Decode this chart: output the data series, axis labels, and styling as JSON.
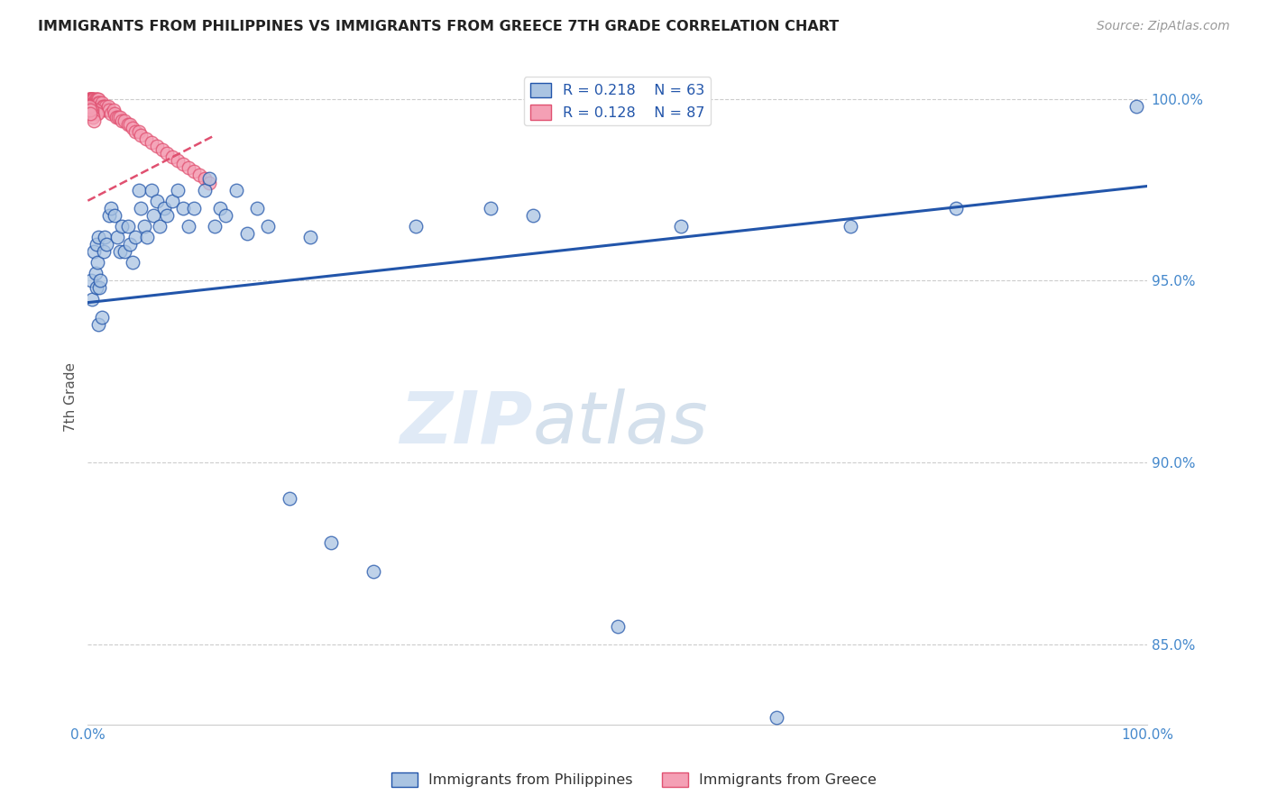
{
  "title": "IMMIGRANTS FROM PHILIPPINES VS IMMIGRANTS FROM GREECE 7TH GRADE CORRELATION CHART",
  "source": "Source: ZipAtlas.com",
  "ylabel": "7th Grade",
  "xlim": [
    0,
    1
  ],
  "ylim": [
    0.828,
    1.008
  ],
  "y_ticks": [
    0.85,
    0.9,
    0.95,
    1.0
  ],
  "y_tick_labels": [
    "85.0%",
    "90.0%",
    "95.0%",
    "100.0%"
  ],
  "x_ticks": [
    0.0,
    0.2,
    0.4,
    0.6,
    0.8,
    1.0
  ],
  "x_tick_labels": [
    "0.0%",
    "",
    "",
    "",
    "",
    "100.0%"
  ],
  "legend_r_blue": "R = 0.218",
  "legend_n_blue": "N = 63",
  "legend_r_pink": "R = 0.128",
  "legend_n_pink": "N = 87",
  "blue_color": "#aac4e2",
  "pink_color": "#f4a0b5",
  "trendline_blue_color": "#2255aa",
  "trendline_pink_color": "#e05070",
  "watermark_zip": "ZIP",
  "watermark_atlas": "atlas",
  "blue_trendline_x": [
    0.0,
    1.0
  ],
  "blue_trendline_y": [
    0.944,
    0.976
  ],
  "pink_trendline_x": [
    0.0,
    0.12
  ],
  "pink_trendline_y": [
    0.972,
    0.99
  ],
  "blue_points_x": [
    0.003,
    0.004,
    0.006,
    0.007,
    0.008,
    0.008,
    0.009,
    0.01,
    0.01,
    0.011,
    0.012,
    0.013,
    0.015,
    0.016,
    0.018,
    0.02,
    0.022,
    0.025,
    0.028,
    0.03,
    0.032,
    0.035,
    0.038,
    0.04,
    0.042,
    0.045,
    0.048,
    0.05,
    0.053,
    0.056,
    0.06,
    0.062,
    0.065,
    0.068,
    0.072,
    0.075,
    0.08,
    0.085,
    0.09,
    0.095,
    0.1,
    0.11,
    0.115,
    0.12,
    0.125,
    0.13,
    0.14,
    0.15,
    0.16,
    0.17,
    0.19,
    0.21,
    0.23,
    0.27,
    0.31,
    0.38,
    0.42,
    0.5,
    0.56,
    0.65,
    0.72,
    0.82,
    0.99
  ],
  "blue_points_y": [
    0.95,
    0.945,
    0.958,
    0.952,
    0.948,
    0.96,
    0.955,
    0.938,
    0.962,
    0.948,
    0.95,
    0.94,
    0.958,
    0.962,
    0.96,
    0.968,
    0.97,
    0.968,
    0.962,
    0.958,
    0.965,
    0.958,
    0.965,
    0.96,
    0.955,
    0.962,
    0.975,
    0.97,
    0.965,
    0.962,
    0.975,
    0.968,
    0.972,
    0.965,
    0.97,
    0.968,
    0.972,
    0.975,
    0.97,
    0.965,
    0.97,
    0.975,
    0.978,
    0.965,
    0.97,
    0.968,
    0.975,
    0.963,
    0.97,
    0.965,
    0.89,
    0.962,
    0.878,
    0.87,
    0.965,
    0.97,
    0.968,
    0.855,
    0.965,
    0.83,
    0.965,
    0.97,
    0.998
  ],
  "pink_points_x": [
    0.001,
    0.001,
    0.001,
    0.001,
    0.001,
    0.002,
    0.002,
    0.002,
    0.002,
    0.002,
    0.003,
    0.003,
    0.003,
    0.003,
    0.003,
    0.004,
    0.004,
    0.004,
    0.004,
    0.005,
    0.005,
    0.005,
    0.005,
    0.006,
    0.006,
    0.006,
    0.006,
    0.007,
    0.007,
    0.007,
    0.008,
    0.008,
    0.008,
    0.009,
    0.009,
    0.01,
    0.01,
    0.01,
    0.011,
    0.012,
    0.013,
    0.014,
    0.015,
    0.016,
    0.017,
    0.018,
    0.019,
    0.02,
    0.022,
    0.024,
    0.025,
    0.027,
    0.029,
    0.03,
    0.032,
    0.035,
    0.038,
    0.04,
    0.042,
    0.045,
    0.048,
    0.05,
    0.055,
    0.06,
    0.065,
    0.07,
    0.075,
    0.08,
    0.085,
    0.09,
    0.095,
    0.1,
    0.105,
    0.11,
    0.115,
    0.007,
    0.008,
    0.009,
    0.003,
    0.003,
    0.004,
    0.004,
    0.005,
    0.006,
    0.001,
    0.002,
    0.002
  ],
  "pink_points_y": [
    1.0,
    1.0,
    1.0,
    0.999,
    0.999,
    1.0,
    1.0,
    0.999,
    0.999,
    0.998,
    1.0,
    1.0,
    0.999,
    0.999,
    0.998,
    1.0,
    1.0,
    0.999,
    0.998,
    1.0,
    1.0,
    0.999,
    0.998,
    1.0,
    0.999,
    0.999,
    0.998,
    1.0,
    0.999,
    0.998,
    1.0,
    0.999,
    0.998,
    1.0,
    0.999,
    1.0,
    0.999,
    0.998,
    0.999,
    0.998,
    0.999,
    0.998,
    0.998,
    0.997,
    0.998,
    0.997,
    0.998,
    0.997,
    0.996,
    0.997,
    0.996,
    0.995,
    0.995,
    0.995,
    0.994,
    0.994,
    0.993,
    0.993,
    0.992,
    0.991,
    0.991,
    0.99,
    0.989,
    0.988,
    0.987,
    0.986,
    0.985,
    0.984,
    0.983,
    0.982,
    0.981,
    0.98,
    0.979,
    0.978,
    0.977,
    0.997,
    0.996,
    0.996,
    0.997,
    0.996,
    0.997,
    0.996,
    0.995,
    0.994,
    0.998,
    0.997,
    0.996
  ]
}
